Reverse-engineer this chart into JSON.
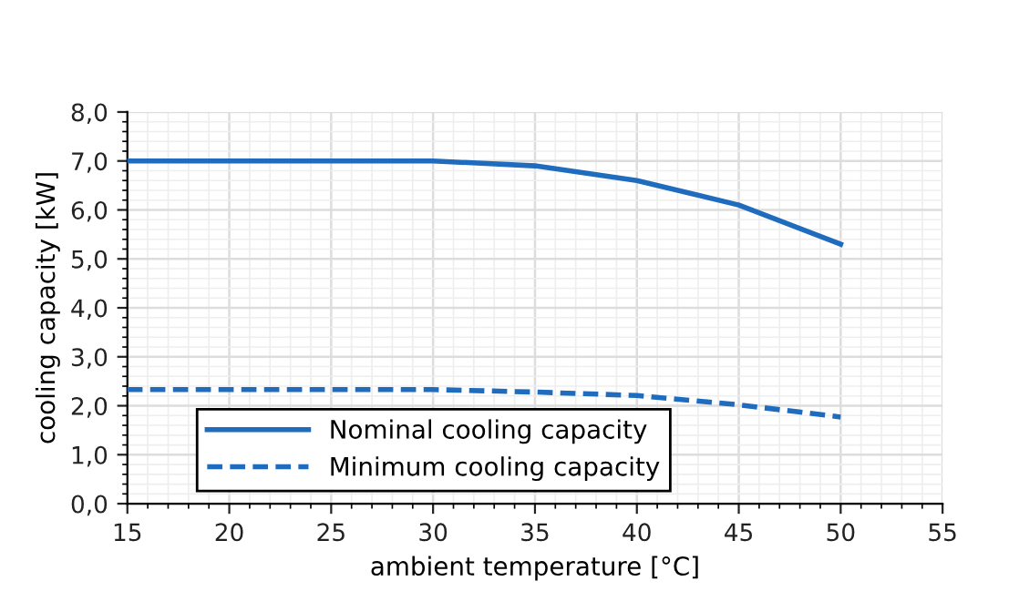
{
  "chart_data": {
    "type": "line",
    "xlabel": "ambient temperature [°C]",
    "ylabel": "cooling capacity [kW]",
    "x": [
      15,
      20,
      25,
      30,
      35,
      40,
      45,
      50
    ],
    "series": [
      {
        "name": "Nominal cooling capacity",
        "color": "#1f6bbd",
        "line_style": "solid",
        "values": [
          7.0,
          7.0,
          7.0,
          7.0,
          6.9,
          6.6,
          6.1,
          5.3
        ]
      },
      {
        "name": "Minimum cooling capacity",
        "color": "#1f6bbd",
        "line_style": "dashed",
        "values": [
          2.33,
          2.33,
          2.33,
          2.33,
          2.28,
          2.21,
          2.02,
          1.77
        ]
      }
    ],
    "xlim": [
      15,
      55
    ],
    "xticks": [
      15,
      20,
      25,
      30,
      35,
      40,
      45,
      50,
      55
    ],
    "ylim": [
      0,
      8
    ],
    "yticks": [
      {
        "value": 0,
        "label": "0,0"
      },
      {
        "value": 1,
        "label": "1,0"
      },
      {
        "value": 2,
        "label": "2,0"
      },
      {
        "value": 3,
        "label": "3,0"
      },
      {
        "value": 4,
        "label": "4,0"
      },
      {
        "value": 5,
        "label": "5,0"
      },
      {
        "value": 6,
        "label": "6,0"
      },
      {
        "value": 7,
        "label": "7,0"
      },
      {
        "value": 8,
        "label": "8,0"
      }
    ],
    "grid": true,
    "legend": "bottom left",
    "marker": "none"
  }
}
